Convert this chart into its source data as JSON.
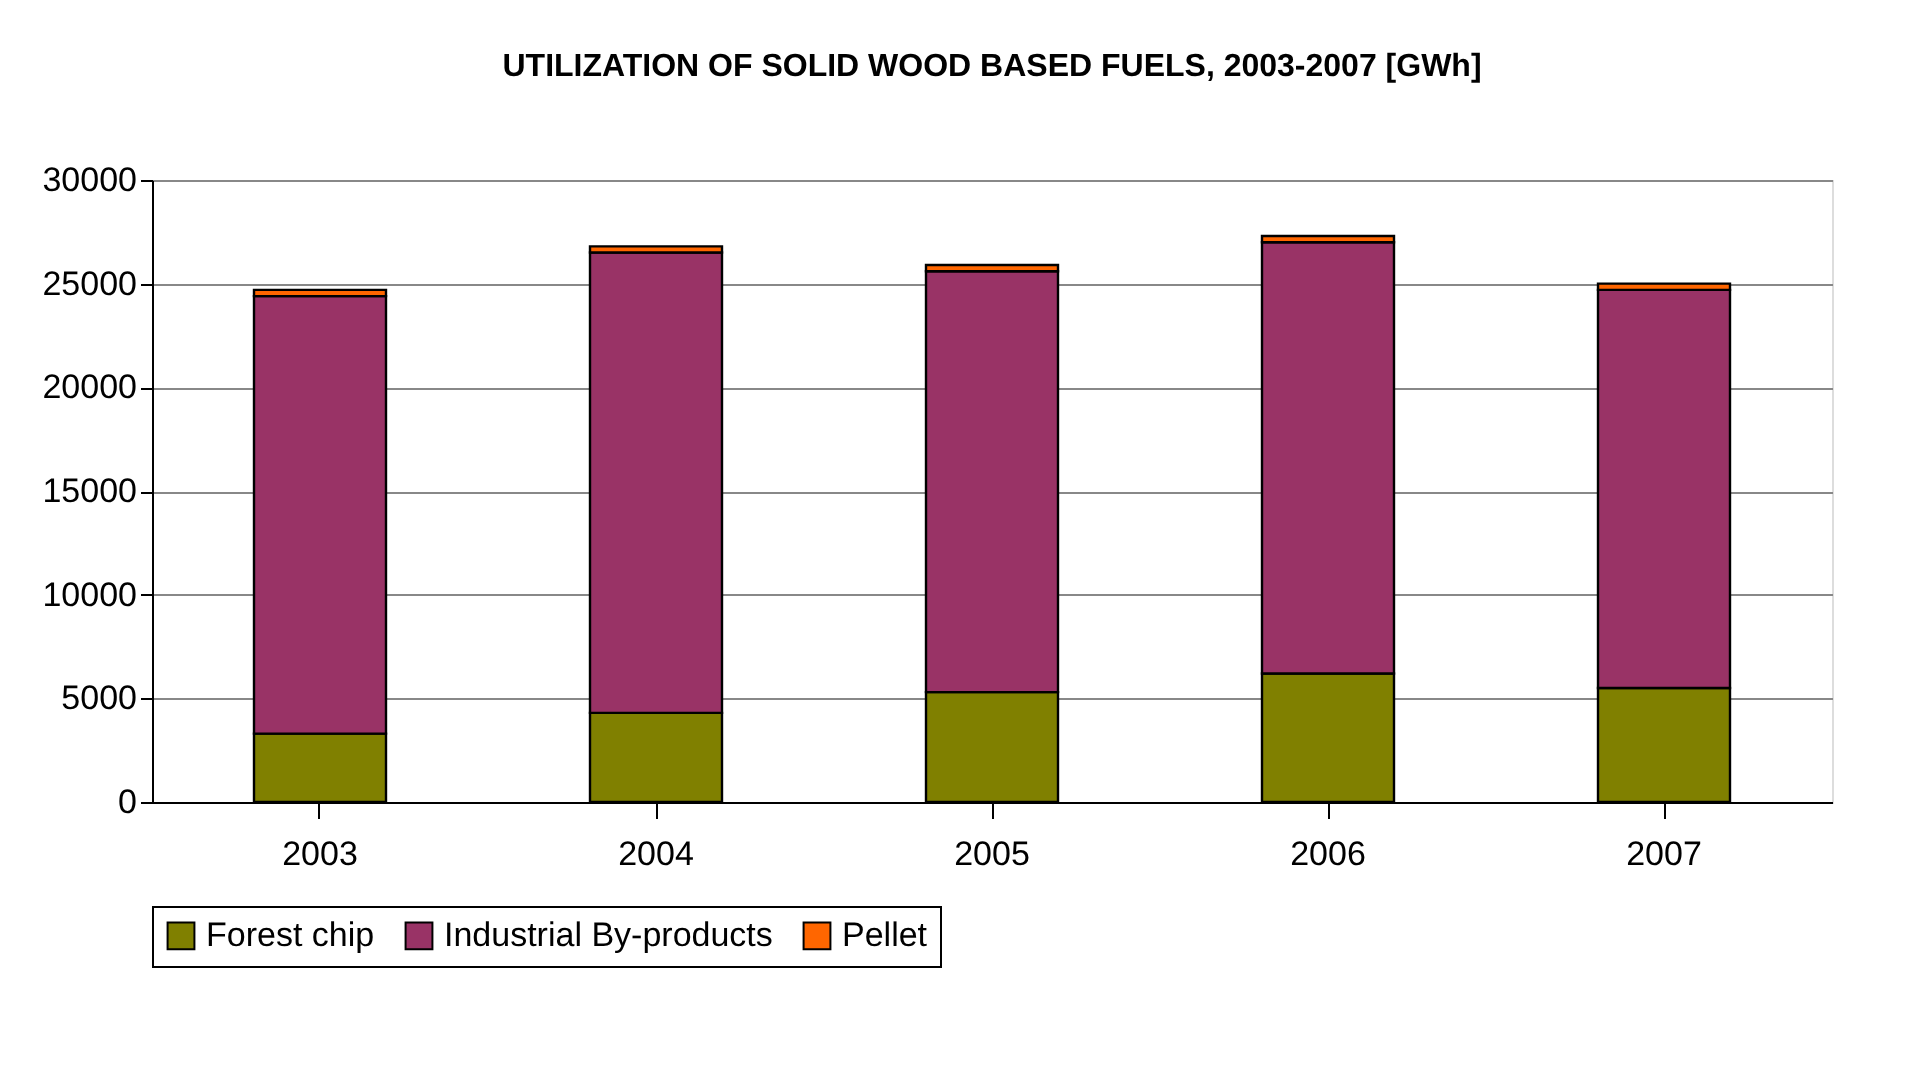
{
  "chart_data": {
    "type": "bar",
    "stacked": true,
    "title": "UTILIZATION OF SOLID WOOD BASED FUELS, 2003-2007 [GWh]",
    "categories": [
      "2003",
      "2004",
      "2005",
      "2006",
      "2007"
    ],
    "series": [
      {
        "name": "Forest chip",
        "color": "#808000",
        "values": [
          3300,
          4300,
          5300,
          6200,
          5500
        ]
      },
      {
        "name": "Industrial By-products",
        "color": "#993366",
        "values": [
          21100,
          22200,
          20300,
          20800,
          19200
        ]
      },
      {
        "name": "Pellet",
        "color": "#ff6600",
        "values": [
          300,
          300,
          300,
          300,
          300
        ]
      }
    ],
    "ylim": [
      0,
      30000
    ],
    "yticks": [
      0,
      5000,
      10000,
      15000,
      20000,
      25000,
      30000
    ],
    "grid": "y",
    "legend": "bottom"
  }
}
